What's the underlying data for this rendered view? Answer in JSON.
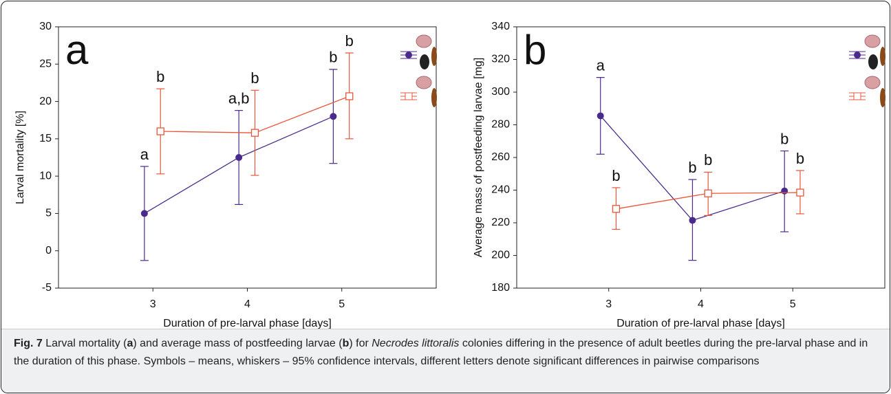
{
  "chart_data": [
    {
      "type": "line",
      "panel_label": "a",
      "ylabel": "Larval mortality [%]",
      "xlabel": "Duration of pre-larval phase [days]",
      "x": [
        3,
        4,
        5
      ],
      "xlim": [
        2,
        6
      ],
      "xticks": [
        3,
        4,
        5
      ],
      "ylim": [
        -5,
        30
      ],
      "yticks": [
        -5,
        0,
        5,
        10,
        15,
        20,
        25,
        30
      ],
      "grid": false,
      "series": [
        {
          "color": "#4a2a8c",
          "marker": "circle",
          "values": [
            5,
            12.5,
            18
          ],
          "lower": [
            -1.3,
            6.2,
            11.7
          ],
          "upper": [
            11.3,
            18.8,
            24.3
          ],
          "letters": [
            "a",
            "a,b",
            "b"
          ]
        },
        {
          "color": "#e8553a",
          "marker": "square",
          "values": [
            16,
            15.8,
            20.7
          ],
          "lower": [
            10.3,
            10.1,
            15
          ],
          "upper": [
            21.7,
            21.5,
            26.5
          ],
          "letters": [
            "b",
            "b",
            "b"
          ]
        }
      ]
    },
    {
      "type": "line",
      "panel_label": "b",
      "ylabel": "Average mass of postfeeding larvae [mg]",
      "xlabel": "Duration of pre-larval phase [days]",
      "x": [
        3,
        4,
        5
      ],
      "xlim": [
        2,
        6
      ],
      "xticks": [
        3,
        4,
        5
      ],
      "ylim": [
        180,
        340
      ],
      "yticks": [
        180,
        200,
        220,
        240,
        260,
        280,
        300,
        320,
        340
      ],
      "grid": false,
      "series": [
        {
          "color": "#4a2a8c",
          "marker": "circle",
          "values": [
            285.5,
            221.5,
            239.5
          ],
          "lower": [
            262,
            197,
            214.5
          ],
          "upper": [
            309,
            246.5,
            264
          ],
          "letters": [
            "a",
            "b",
            "b"
          ]
        },
        {
          "color": "#e8553a",
          "marker": "square",
          "values": [
            228.5,
            238,
            238.5
          ],
          "lower": [
            216,
            224.5,
            225.5
          ],
          "upper": [
            241.5,
            251,
            252
          ],
          "letters": [
            "b",
            "b",
            "b"
          ]
        }
      ]
    }
  ],
  "caption": {
    "label": "Fig. 7",
    "parts": [
      "Larval mortality (",
      "a",
      ") and average mass of postfeeding larvae (",
      "b",
      ") for ",
      "Necrodes littoralis",
      " colonies differing in the presence of adult beetles during the pre-larval phase and in the duration of this phase. Symbols – means, whiskers – 95% confidence intervals, different letters denote significant differences in pairwise comparisons"
    ]
  }
}
